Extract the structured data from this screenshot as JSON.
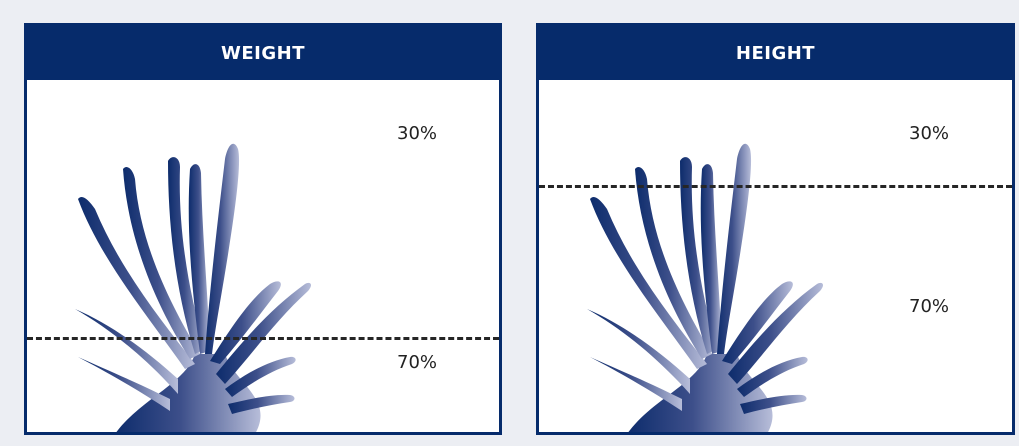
{
  "panels": [
    {
      "title": "WEIGHT",
      "top_label": "30%",
      "bottom_label": "70%"
    },
    {
      "title": "HEIGHT",
      "top_label": "30%",
      "bottom_label": "70%"
    }
  ],
  "colors": {
    "header_bg": "#062b6b",
    "plant_dark": "#0d2c6c",
    "plant_light": "#b7bdd9",
    "dashed_line": "#262626"
  }
}
